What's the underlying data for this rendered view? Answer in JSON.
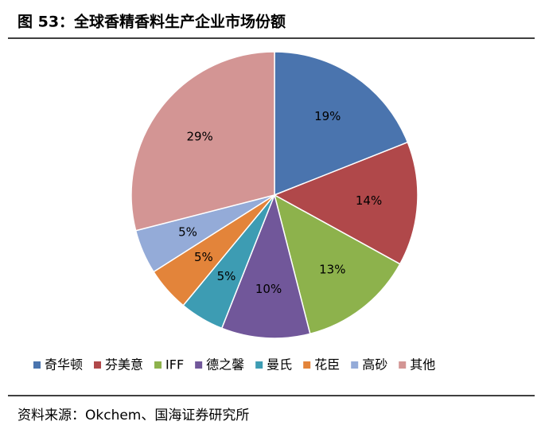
{
  "chart_data": {
    "type": "pie",
    "title": "图 53：全球香精香料生产企业市场份额",
    "categories": [
      "奇华顿",
      "芬美意",
      "IFF",
      "德之馨",
      "曼氏",
      "花臣",
      "高砂",
      "其他"
    ],
    "values": [
      19,
      14,
      13,
      10,
      5,
      5,
      5,
      29
    ],
    "value_labels": [
      "19%",
      "14%",
      "13%",
      "10%",
      "5%",
      "5%",
      "5%",
      "29%"
    ],
    "colors": [
      "#4a74ae",
      "#b0484a",
      "#8db24c",
      "#71579a",
      "#3d9cb3",
      "#e3843a",
      "#94abd8",
      "#d39594"
    ],
    "source": "资料来源：Okchem、国海证券研究所"
  }
}
